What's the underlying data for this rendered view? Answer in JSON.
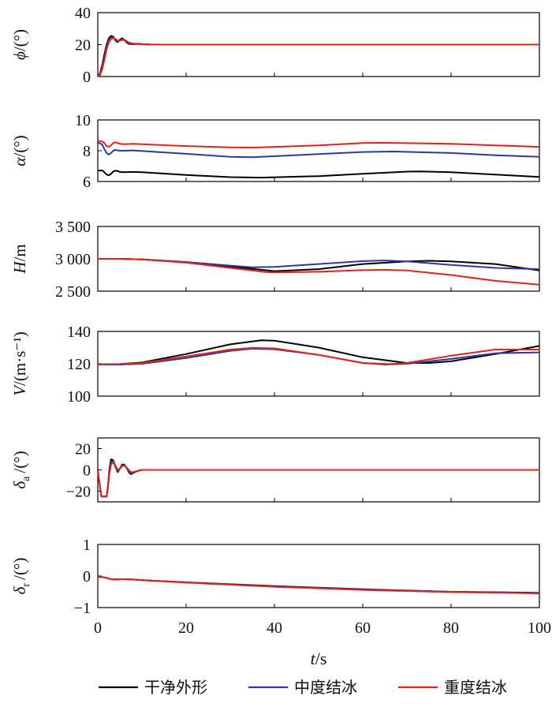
{
  "chart_data": {
    "type": "line",
    "xlabel": {
      "main": "t",
      "unit": "/s"
    },
    "xlim": [
      0,
      100
    ],
    "xticks": [
      "0",
      "20",
      "40",
      "60",
      "80",
      "100"
    ],
    "grid": false,
    "legend_position": "bottom",
    "series_meta": [
      {
        "name": "干净外形",
        "color": "#000000"
      },
      {
        "name": "中度结冰",
        "color": "#2b3a9c"
      },
      {
        "name": "重度结冰",
        "color": "#e1231b"
      }
    ],
    "panels": [
      {
        "ylabel": {
          "main": "ϕ",
          "unit": "/(°)"
        },
        "ylim": [
          0,
          40
        ],
        "yticks": [
          "0",
          "20",
          "40"
        ],
        "series": [
          {
            "name": "干净外形",
            "x": [
              0,
              0.5,
              1,
              1.5,
              2,
              2.5,
              3,
              3.5,
              4,
              4.5,
              5,
              5.5,
              6,
              6.5,
              7,
              8,
              9,
              10,
              12,
              15,
              20,
              30,
              50,
              100
            ],
            "values": [
              0,
              2,
              7,
              14,
              20,
              24,
              25.5,
              25,
              22.5,
              21.5,
              23,
              24,
              23,
              21.5,
              20.5,
              20.2,
              20.6,
              20.3,
              20,
              20,
              20,
              20,
              20,
              20
            ]
          },
          {
            "name": "中度结冰",
            "x": [
              0,
              0.5,
              1,
              1.5,
              2,
              2.5,
              3,
              3.5,
              4,
              4.5,
              5,
              5.5,
              6,
              6.5,
              7,
              8,
              9,
              10,
              12,
              15,
              20,
              30,
              50,
              100
            ],
            "values": [
              0,
              1.5,
              5.5,
              12,
              18.5,
              23,
              24.5,
              24.5,
              23,
              22,
              22.5,
              23,
              22.7,
              22,
              21,
              20.3,
              20.4,
              20.2,
              20,
              20,
              20,
              20,
              20,
              20
            ]
          },
          {
            "name": "重度结冰",
            "x": [
              0,
              0.5,
              1,
              1.5,
              2,
              2.5,
              3,
              3.5,
              4,
              4.5,
              5,
              5.5,
              6,
              6.5,
              7,
              8,
              9,
              10,
              12,
              15,
              20,
              30,
              50,
              100
            ],
            "values": [
              0,
              1,
              4.5,
              10.5,
              17,
              21.5,
              23.5,
              24,
              23.5,
              22.5,
              22.5,
              23,
              23,
              22.3,
              21.3,
              20.6,
              20.5,
              20.3,
              20.1,
              20,
              20,
              20,
              20,
              20
            ]
          }
        ]
      },
      {
        "ylabel": {
          "main": "α",
          "unit": "/(°)"
        },
        "ylim": [
          6,
          10
        ],
        "yticks": [
          "6",
          "8",
          "10"
        ],
        "series": [
          {
            "name": "干净外形",
            "x": [
              0,
              1,
              1.5,
              2,
              2.5,
              3,
              3.5,
              4,
              4.5,
              5,
              6,
              8,
              10,
              20,
              30,
              37,
              50,
              60,
              70,
              73,
              80,
              90,
              100
            ],
            "values": [
              6.7,
              6.72,
              6.6,
              6.45,
              6.4,
              6.5,
              6.65,
              6.7,
              6.68,
              6.62,
              6.6,
              6.62,
              6.6,
              6.42,
              6.28,
              6.25,
              6.35,
              6.5,
              6.64,
              6.65,
              6.6,
              6.45,
              6.3
            ]
          },
          {
            "name": "中度结冰",
            "x": [
              0,
              1,
              1.5,
              2,
              2.5,
              3,
              3.5,
              4,
              4.5,
              5,
              6,
              8,
              10,
              20,
              30,
              35,
              50,
              60,
              67,
              80,
              90,
              100
            ],
            "values": [
              8.55,
              8.4,
              8.1,
              7.85,
              7.75,
              7.85,
              8.0,
              8.05,
              8.02,
              8.0,
              8.0,
              8.02,
              7.98,
              7.8,
              7.6,
              7.58,
              7.78,
              7.92,
              7.95,
              7.85,
              7.7,
              7.6
            ]
          },
          {
            "name": "重度结冰",
            "x": [
              0,
              1,
              1.5,
              2,
              2.5,
              3,
              3.5,
              4,
              4.5,
              5,
              6,
              8,
              10,
              20,
              30,
              35,
              50,
              60,
              64,
              80,
              90,
              100
            ],
            "values": [
              8.65,
              8.6,
              8.5,
              8.3,
              8.25,
              8.35,
              8.5,
              8.55,
              8.5,
              8.45,
              8.42,
              8.45,
              8.42,
              8.3,
              8.22,
              8.2,
              8.35,
              8.5,
              8.52,
              8.45,
              8.35,
              8.25
            ]
          }
        ]
      },
      {
        "ylabel": {
          "main": "H",
          "unit": "/m"
        },
        "ylim": [
          2500,
          3500
        ],
        "yticks": [
          "2 500",
          "3 000",
          "3 500"
        ],
        "series": [
          {
            "name": "干净外形",
            "x": [
              0,
              5,
              10,
              20,
              30,
              40,
              50,
              60,
              70,
              75,
              80,
              90,
              100
            ],
            "values": [
              3000,
              3000,
              2990,
              2950,
              2880,
              2810,
              2840,
              2920,
              2960,
              2970,
              2960,
              2920,
              2820
            ]
          },
          {
            "name": "中度结冰",
            "x": [
              0,
              5,
              10,
              20,
              30,
              35,
              40,
              50,
              60,
              65,
              70,
              80,
              90,
              100
            ],
            "values": [
              3000,
              3000,
              2990,
              2950,
              2895,
              2870,
              2875,
              2920,
              2965,
              2975,
              2960,
              2905,
              2860,
              2840
            ]
          },
          {
            "name": "重度结冰",
            "x": [
              0,
              5,
              10,
              20,
              30,
              38,
              40,
              50,
              60,
              65,
              70,
              80,
              90,
              100
            ],
            "values": [
              3000,
              3000,
              2990,
              2940,
              2860,
              2795,
              2790,
              2800,
              2825,
              2830,
              2820,
              2750,
              2660,
              2600
            ]
          }
        ]
      },
      {
        "ylabel": {
          "main": "V",
          "unit": "/(m·s⁻¹)"
        },
        "ylim": [
          100,
          140
        ],
        "yticks": [
          "100",
          "120",
          "140"
        ],
        "series": [
          {
            "name": "干净外形",
            "x": [
              0,
              5,
              10,
              20,
              30,
              37,
              40,
              50,
              60,
              70,
              75,
              80,
              90,
              100
            ],
            "values": [
              119.5,
              119.8,
              120.8,
              126,
              132,
              134.5,
              134.3,
              130,
              124,
              120.5,
              120.5,
              121.5,
              126,
              131
            ]
          },
          {
            "name": "中度结冰",
            "x": [
              0,
              5,
              10,
              20,
              30,
              35,
              40,
              50,
              60,
              65,
              70,
              80,
              90,
              100
            ],
            "values": [
              119.5,
              119.5,
              120,
              123.5,
              128,
              129.3,
              129,
              125.5,
              120.5,
              119.5,
              120,
              123,
              126.5,
              127
            ]
          },
          {
            "name": "重度结冰",
            "x": [
              0,
              5,
              10,
              20,
              30,
              35,
              40,
              50,
              60,
              66,
              70,
              80,
              90,
              100
            ],
            "values": [
              119.5,
              119.8,
              120.5,
              124.5,
              128.8,
              129.8,
              129.5,
              125.5,
              120.5,
              119.8,
              120.5,
              125,
              128.8,
              128.8
            ]
          }
        ]
      },
      {
        "ylabel": {
          "main": "δ",
          "sub": "a",
          "unit": "/(°)"
        },
        "ylim": [
          -30,
          30
        ],
        "yticks": [
          "−20",
          "0",
          "20"
        ],
        "series": [
          {
            "name": "干净外形",
            "x": [
              0,
              0.3,
              0.8,
              1.5,
              2,
              2.3,
              2.6,
              3,
              3.5,
              4,
              4.5,
              5,
              5.5,
              6,
              6.5,
              7,
              7.5,
              8,
              9,
              10,
              12,
              15,
              20,
              50,
              100
            ],
            "values": [
              0,
              -10,
              -25,
              -25,
              -25,
              -15,
              0,
              10,
              9,
              3,
              -2,
              1,
              5,
              5,
              2,
              -2,
              -4,
              -3,
              -1,
              0,
              0,
              0,
              0,
              0,
              0
            ]
          },
          {
            "name": "中度结冰",
            "x": [
              0,
              0.3,
              0.8,
              1.5,
              2,
              2.3,
              2.6,
              3,
              3.5,
              4,
              4.5,
              5,
              5.5,
              6,
              6.5,
              7,
              7.5,
              8,
              9,
              10,
              12,
              15,
              20,
              50,
              100
            ],
            "values": [
              0,
              -10,
              -25,
              -25,
              -25,
              -16,
              -2,
              7,
              8,
              3,
              -1,
              1,
              4,
              4.5,
              2,
              -1,
              -3,
              -2.5,
              -1,
              0,
              0,
              0,
              0,
              0,
              0
            ]
          },
          {
            "name": "重度结冰",
            "x": [
              0,
              0.3,
              0.8,
              1.5,
              2,
              2.3,
              2.6,
              3,
              3.5,
              4,
              4.5,
              5,
              5.5,
              6,
              6.5,
              7,
              7.5,
              8,
              9,
              10,
              12,
              15,
              20,
              50,
              100
            ],
            "values": [
              0,
              -10,
              -25,
              -25,
              -25,
              -17,
              -4,
              5,
              7,
              4,
              0,
              1,
              3.5,
              4,
              2.5,
              0,
              -2,
              -2,
              -1,
              0,
              0,
              0,
              0,
              0,
              0
            ]
          }
        ]
      },
      {
        "ylabel": {
          "main": "δ",
          "sub": "r",
          "unit": "/(°)"
        },
        "ylim": [
          -1,
          1
        ],
        "yticks": [
          "−1",
          "0",
          "1"
        ],
        "series": [
          {
            "name": "干净外形",
            "x": [
              0,
              1,
              2,
              3,
              4,
              5,
              6,
              8,
              10,
              20,
              40,
              60,
              80,
              100
            ],
            "values": [
              -0.03,
              -0.03,
              -0.06,
              -0.1,
              -0.11,
              -0.1,
              -0.1,
              -0.11,
              -0.13,
              -0.2,
              -0.32,
              -0.42,
              -0.5,
              -0.53
            ]
          },
          {
            "name": "中度结冰",
            "x": [
              0,
              1,
              2,
              3,
              4,
              5,
              6,
              8,
              10,
              20,
              40,
              60,
              80,
              100
            ],
            "values": [
              -0.03,
              -0.03,
              -0.06,
              -0.1,
              -0.11,
              -0.1,
              -0.1,
              -0.11,
              -0.13,
              -0.2,
              -0.33,
              -0.43,
              -0.5,
              -0.54
            ]
          },
          {
            "name": "重度结冰",
            "x": [
              0,
              1,
              2,
              3,
              4,
              5,
              6,
              8,
              10,
              20,
              40,
              60,
              80,
              100
            ],
            "values": [
              -0.03,
              -0.03,
              -0.06,
              -0.1,
              -0.11,
              -0.1,
              -0.1,
              -0.11,
              -0.13,
              -0.21,
              -0.34,
              -0.44,
              -0.51,
              -0.55
            ]
          }
        ]
      }
    ]
  }
}
